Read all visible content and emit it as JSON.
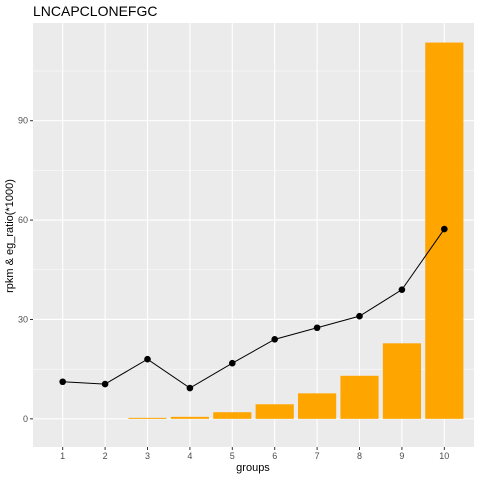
{
  "chart_data": {
    "type": "bar",
    "title": "LNCAPCLONEFGC",
    "xlabel": "groups",
    "ylabel": "rpkm & eg_ratio(*1000)",
    "categories": [
      "1",
      "2",
      "3",
      "4",
      "5",
      "6",
      "7",
      "8",
      "9",
      "10"
    ],
    "series": [
      {
        "kind": "bar",
        "values": [
          0.0,
          0.0,
          0.3,
          0.6,
          2.0,
          4.4,
          7.7,
          13.0,
          22.8,
          113.6
        ],
        "color": "#FFA500"
      },
      {
        "kind": "line",
        "values": [
          11.2,
          10.5,
          18.0,
          9.3,
          16.8,
          24.0,
          27.5,
          31.0,
          39.0,
          57.3
        ],
        "color": "#000000"
      }
    ],
    "ylim": [
      -8.5,
      119.5
    ],
    "yticks": [
      0,
      30,
      60,
      90
    ],
    "grid": true,
    "panel_background": "#EBEBEB",
    "grid_color": "#FFFFFF"
  }
}
